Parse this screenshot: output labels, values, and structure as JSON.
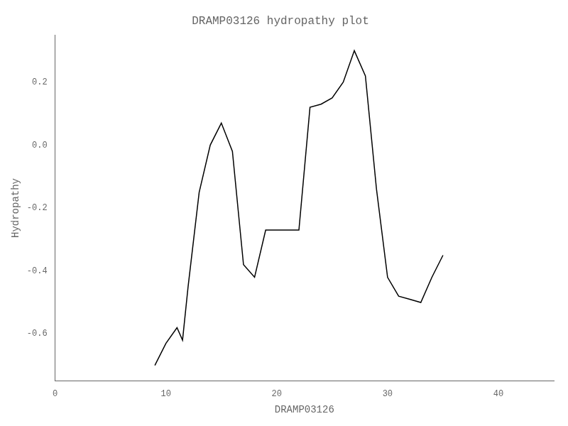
{
  "chart_data": {
    "type": "line",
    "title": "DRAMP03126 hydropathy plot",
    "xlabel": "DRAMP03126",
    "ylabel": "Hydropathy",
    "x": [
      9,
      10,
      11,
      11.5,
      12,
      13,
      14,
      15,
      16,
      17,
      18,
      19,
      20,
      21,
      22,
      23,
      24,
      25,
      26,
      27,
      28,
      29,
      30,
      31,
      32,
      33,
      34,
      35
    ],
    "values": [
      -0.7,
      -0.63,
      -0.58,
      -0.62,
      -0.45,
      -0.15,
      0.0,
      0.07,
      -0.02,
      -0.38,
      -0.42,
      -0.27,
      -0.27,
      -0.27,
      -0.27,
      0.12,
      0.13,
      0.15,
      0.2,
      0.3,
      0.22,
      -0.14,
      -0.42,
      -0.48,
      -0.49,
      -0.5,
      -0.42,
      -0.35
    ],
    "color": "#000000",
    "xlim": [
      0,
      45
    ],
    "ylim": [
      -0.75,
      0.35
    ],
    "xticks": [
      0,
      10,
      20,
      30,
      40
    ],
    "yticks": [
      -0.6,
      -0.4,
      -0.2,
      {
        "value": 0,
        "label": "0.0"
      },
      0.2
    ],
    "grid": false
  }
}
